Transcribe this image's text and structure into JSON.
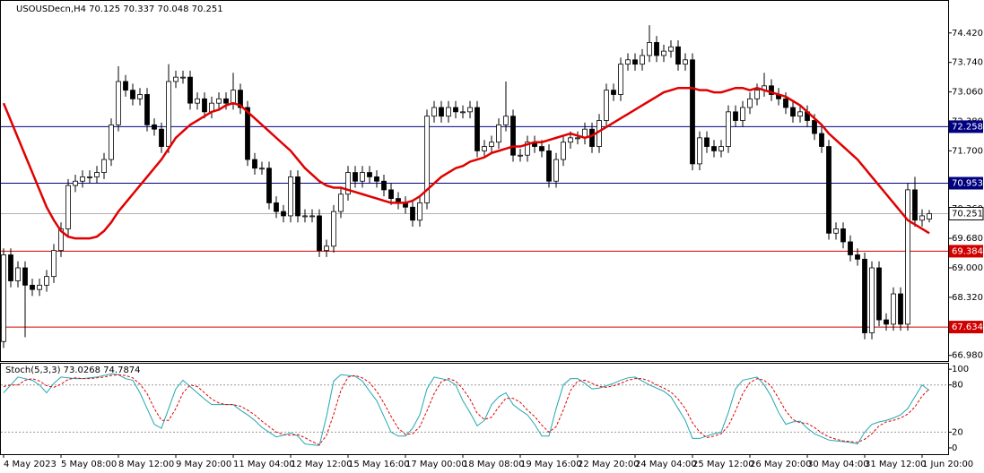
{
  "chart_data": {
    "type": "candlestick",
    "title": "USOUSDecn,H4  70.125 70.337 70.048 70.251",
    "categories": [
      "4 May 2023",
      null,
      null,
      null,
      null,
      null,
      null,
      null,
      "5 May 08:00",
      null,
      null,
      null,
      null,
      null,
      null,
      null,
      "8 May 12:00",
      null,
      null,
      null,
      null,
      null,
      null,
      null,
      "9 May 20:00",
      null,
      null,
      null,
      null,
      null,
      null,
      null,
      "11 May 04:00",
      null,
      null,
      null,
      null,
      null,
      null,
      null,
      "12 May 12:00",
      null,
      null,
      null,
      null,
      null,
      null,
      null,
      "15 May 16:00",
      null,
      null,
      null,
      null,
      null,
      null,
      null,
      "17 May 00:00",
      null,
      null,
      null,
      null,
      null,
      null,
      null,
      "18 May 08:00",
      null,
      null,
      null,
      null,
      null,
      null,
      null,
      "19 May 16:00",
      null,
      null,
      null,
      null,
      null,
      null,
      null,
      "22 May 20:00",
      null,
      null,
      null,
      null,
      null,
      null,
      null,
      "24 May 04:00",
      null,
      null,
      null,
      null,
      null,
      null,
      null,
      "25 May 12:00",
      null,
      null,
      null,
      null,
      null,
      null,
      null,
      "26 May 20:00",
      null,
      null,
      null,
      null,
      null,
      null,
      null,
      "30 May 04:00",
      null,
      null,
      null,
      null,
      null,
      null,
      null,
      "31 May 12:00",
      null,
      null,
      null,
      null,
      null,
      null,
      null,
      "1 Jun 20:00",
      null
    ],
    "open": [
      67.3,
      69.3,
      68.7,
      69.0,
      68.6,
      68.5,
      68.6,
      68.8,
      69.4,
      69.9,
      70.9,
      71.0,
      71.1,
      71.1,
      71.2,
      71.5,
      72.3,
      73.3,
      73.1,
      72.9,
      73.0,
      72.3,
      72.2,
      71.8,
      73.3,
      73.4,
      73.4,
      72.8,
      72.9,
      72.6,
      72.8,
      72.9,
      72.8,
      73.1,
      72.7,
      71.5,
      71.3,
      71.3,
      70.5,
      70.3,
      70.2,
      71.1,
      70.2,
      70.2,
      70.2,
      69.4,
      69.5,
      70.3,
      70.7,
      71.2,
      71.0,
      71.2,
      71.1,
      71.0,
      70.8,
      70.6,
      70.5,
      70.4,
      70.1,
      70.5,
      72.5,
      72.7,
      72.5,
      72.7,
      72.6,
      72.6,
      72.7,
      71.7,
      71.8,
      71.9,
      72.3,
      72.5,
      71.6,
      71.6,
      71.9,
      71.8,
      71.7,
      71.0,
      71.5,
      71.9,
      72.0,
      72.0,
      72.2,
      71.8,
      72.4,
      73.1,
      73.0,
      73.7,
      73.8,
      73.7,
      73.9,
      74.2,
      73.9,
      74.0,
      74.1,
      73.7,
      73.8,
      71.4,
      72.0,
      71.8,
      71.7,
      71.8,
      72.6,
      72.4,
      72.7,
      72.9,
      73.1,
      73.2,
      73.0,
      72.9,
      72.7,
      72.5,
      72.6,
      72.4,
      72.1,
      71.8,
      69.8,
      69.9,
      69.6,
      69.3,
      69.2,
      67.5,
      69.0,
      67.8,
      67.7,
      68.4,
      67.7,
      70.8,
      70.1,
      70.125
    ],
    "high": [
      69.45,
      69.45,
      69.15,
      69.15,
      68.75,
      68.75,
      68.95,
      69.55,
      70.05,
      71.05,
      71.15,
      71.25,
      71.25,
      71.35,
      71.65,
      72.45,
      73.65,
      73.45,
      73.25,
      73.15,
      73.15,
      72.45,
      72.35,
      73.7,
      73.55,
      73.55,
      73.55,
      73.05,
      73.05,
      72.95,
      73.05,
      73.05,
      73.5,
      73.25,
      72.85,
      71.65,
      71.45,
      71.45,
      70.65,
      70.45,
      71.25,
      71.25,
      70.35,
      70.35,
      70.35,
      69.65,
      70.45,
      70.85,
      71.35,
      71.35,
      71.35,
      71.35,
      71.25,
      71.15,
      70.95,
      70.75,
      70.65,
      70.55,
      70.65,
      72.65,
      72.85,
      72.85,
      72.85,
      72.85,
      72.75,
      72.85,
      72.85,
      71.95,
      72.05,
      72.45,
      73.3,
      72.65,
      71.75,
      72.05,
      72.05,
      71.95,
      71.85,
      71.65,
      72.05,
      72.15,
      72.15,
      72.35,
      72.35,
      72.55,
      73.25,
      73.25,
      73.85,
      73.95,
      73.95,
      74.05,
      74.6,
      74.35,
      74.15,
      74.25,
      74.25,
      73.95,
      73.95,
      72.15,
      72.15,
      71.95,
      71.95,
      72.75,
      72.75,
      72.85,
      73.05,
      73.25,
      73.5,
      73.35,
      73.15,
      73.05,
      72.85,
      72.75,
      72.75,
      72.55,
      72.25,
      71.95,
      70.05,
      70.05,
      69.75,
      69.45,
      69.35,
      69.15,
      69.15,
      67.95,
      68.55,
      68.55,
      70.95,
      71.1,
      70.35,
      70.337
    ],
    "low": [
      67.15,
      68.55,
      68.55,
      67.4,
      68.35,
      68.35,
      68.45,
      68.65,
      69.25,
      69.75,
      70.75,
      70.85,
      70.95,
      70.95,
      71.05,
      71.35,
      72.15,
      72.95,
      72.75,
      72.75,
      72.15,
      72.05,
      71.65,
      71.65,
      73.15,
      73.25,
      72.65,
      72.65,
      72.45,
      72.45,
      72.65,
      72.65,
      72.65,
      72.55,
      71.35,
      71.15,
      71.15,
      70.35,
      70.15,
      70.05,
      70.05,
      70.05,
      70.05,
      70.05,
      69.25,
      69.25,
      69.35,
      70.15,
      70.55,
      70.85,
      70.85,
      70.95,
      70.85,
      70.65,
      70.45,
      70.35,
      70.25,
      69.95,
      69.95,
      70.35,
      72.35,
      72.35,
      72.35,
      72.45,
      72.45,
      72.45,
      71.55,
      71.55,
      71.65,
      71.75,
      72.15,
      71.45,
      71.45,
      71.45,
      71.65,
      71.55,
      70.85,
      70.85,
      71.35,
      71.75,
      71.85,
      71.85,
      71.65,
      71.65,
      72.25,
      72.85,
      72.85,
      73.55,
      73.55,
      73.55,
      73.75,
      73.75,
      73.75,
      73.85,
      73.55,
      73.55,
      71.25,
      71.25,
      71.65,
      71.55,
      71.55,
      71.65,
      72.25,
      72.25,
      72.55,
      72.75,
      72.95,
      72.85,
      72.75,
      72.55,
      72.35,
      72.35,
      72.25,
      71.95,
      71.65,
      69.65,
      69.65,
      69.45,
      69.15,
      69.05,
      67.35,
      67.35,
      67.65,
      67.55,
      67.55,
      67.55,
      67.55,
      69.95,
      69.95,
      70.048
    ],
    "close": [
      69.3,
      68.7,
      69.0,
      68.6,
      68.5,
      68.6,
      68.8,
      69.4,
      69.9,
      70.9,
      71.0,
      71.1,
      71.1,
      71.2,
      71.5,
      72.3,
      73.3,
      73.1,
      72.9,
      73.0,
      72.3,
      72.2,
      71.8,
      73.3,
      73.4,
      73.4,
      72.8,
      72.9,
      72.6,
      72.8,
      72.9,
      72.8,
      73.1,
      72.7,
      71.5,
      71.3,
      71.3,
      70.5,
      70.3,
      70.2,
      71.1,
      70.2,
      70.2,
      70.2,
      69.4,
      69.5,
      70.3,
      70.7,
      71.2,
      71.0,
      71.2,
      71.1,
      71.0,
      70.8,
      70.6,
      70.5,
      70.4,
      70.1,
      70.5,
      72.5,
      72.7,
      72.5,
      72.7,
      72.6,
      72.6,
      72.7,
      71.7,
      71.8,
      71.9,
      72.3,
      72.5,
      71.6,
      71.6,
      71.9,
      71.8,
      71.7,
      71.0,
      71.5,
      71.9,
      72.0,
      72.0,
      72.2,
      71.8,
      72.4,
      73.1,
      73.0,
      73.7,
      73.8,
      73.7,
      73.9,
      74.2,
      73.9,
      74.0,
      74.1,
      73.7,
      73.8,
      71.4,
      72.0,
      71.8,
      71.7,
      71.8,
      72.6,
      72.4,
      72.7,
      72.9,
      73.1,
      73.2,
      73.0,
      72.9,
      72.7,
      72.5,
      72.6,
      72.4,
      72.1,
      71.8,
      69.8,
      69.9,
      69.6,
      69.3,
      69.2,
      67.5,
      69.0,
      67.8,
      67.7,
      68.4,
      67.7,
      70.8,
      70.1,
      70.2,
      70.251
    ],
    "ma": {
      "color": "#e00000",
      "values": [
        72.8,
        72.4,
        72.0,
        71.6,
        71.2,
        70.8,
        70.4,
        70.1,
        69.85,
        69.72,
        69.68,
        69.68,
        69.68,
        69.72,
        69.85,
        70.05,
        70.3,
        70.5,
        70.7,
        70.9,
        71.1,
        71.3,
        71.5,
        71.75,
        72.0,
        72.15,
        72.3,
        72.4,
        72.5,
        72.6,
        72.65,
        72.75,
        72.8,
        72.75,
        72.6,
        72.45,
        72.3,
        72.15,
        72.0,
        71.85,
        71.7,
        71.5,
        71.3,
        71.15,
        71.0,
        70.9,
        70.85,
        70.85,
        70.8,
        70.75,
        70.7,
        70.65,
        70.6,
        70.55,
        70.5,
        70.5,
        70.5,
        70.55,
        70.65,
        70.8,
        70.95,
        71.1,
        71.2,
        71.3,
        71.35,
        71.45,
        71.5,
        71.55,
        71.65,
        71.7,
        71.75,
        71.8,
        71.8,
        71.85,
        71.9,
        71.9,
        71.95,
        72.0,
        72.05,
        72.1,
        72.05,
        72.0,
        72.05,
        72.15,
        72.25,
        72.35,
        72.45,
        72.55,
        72.65,
        72.75,
        72.85,
        72.95,
        73.05,
        73.1,
        73.15,
        73.15,
        73.15,
        73.1,
        73.1,
        73.05,
        73.05,
        73.1,
        73.15,
        73.15,
        73.1,
        73.15,
        73.1,
        73.05,
        73.0,
        72.95,
        72.85,
        72.75,
        72.6,
        72.45,
        72.3,
        72.1,
        71.95,
        71.8,
        71.65,
        71.5,
        71.3,
        71.1,
        70.9,
        70.7,
        70.5,
        70.3,
        70.1,
        70.0,
        69.9,
        69.8
      ]
    },
    "ylim": [
      66.85,
      75.16
    ],
    "yticks": [
      {
        "value": 74.42,
        "label": "74.420"
      },
      {
        "value": 73.74,
        "label": "73.740"
      },
      {
        "value": 73.06,
        "label": "73.060"
      },
      {
        "value": 72.38,
        "label": "72.380"
      },
      {
        "value": 71.7,
        "label": "71.700"
      },
      {
        "value": 70.36,
        "label": "70.360"
      },
      {
        "value": 69.68,
        "label": "69.680"
      },
      {
        "value": 69,
        "label": "69.000"
      },
      {
        "value": 68.32,
        "label": "68.320"
      },
      {
        "value": 66.98,
        "label": "66.980"
      }
    ],
    "levels": [
      {
        "value": 72.258,
        "color": "#000080"
      },
      {
        "value": 70.953,
        "color": "#000080"
      },
      {
        "value": 69.384,
        "color": "#d00000"
      },
      {
        "value": 67.634,
        "color": "#d00000"
      }
    ],
    "last_price": 70.251,
    "stochastic": {
      "title": "Stoch(5,3,3) 73.0268 74.7874",
      "ylim": [
        -8,
        107
      ],
      "yticks": [
        100,
        80,
        20,
        0
      ],
      "levels": [
        80,
        20
      ],
      "main": {
        "color": "#20a8b0",
        "values": [
          70,
          80,
          90,
          88,
          86,
          80,
          70,
          82,
          90,
          89,
          88,
          88,
          89,
          90,
          92,
          94,
          93,
          88,
          86,
          70,
          50,
          30,
          25,
          50,
          75,
          86,
          78,
          70,
          62,
          55,
          55,
          55,
          55,
          48,
          42,
          35,
          26,
          20,
          14,
          16,
          19,
          15,
          5,
          4,
          3,
          40,
          85,
          93,
          92,
          91,
          85,
          72,
          60,
          40,
          20,
          15,
          15,
          25,
          42,
          75,
          90,
          88,
          86,
          80,
          60,
          45,
          28,
          35,
          55,
          65,
          70,
          55,
          48,
          42,
          30,
          15,
          15,
          50,
          80,
          88,
          88,
          82,
          75,
          76,
          79,
          82,
          86,
          89,
          90,
          85,
          80,
          76,
          72,
          65,
          50,
          35,
          12,
          12,
          15,
          18,
          20,
          45,
          75,
          86,
          88,
          90,
          80,
          65,
          45,
          30,
          33,
          34,
          25,
          18,
          14,
          10,
          9,
          8,
          7,
          5,
          20,
          30,
          33,
          35,
          38,
          42,
          50,
          65,
          80,
          73
        ]
      },
      "signal": {
        "color": "#e00000",
        "values": [
          78,
          80,
          80,
          86,
          88,
          85,
          79,
          77,
          81,
          87,
          89,
          88,
          88,
          89,
          90,
          92,
          93,
          92,
          89,
          81,
          69,
          50,
          35,
          35,
          50,
          70,
          80,
          78,
          70,
          62,
          57,
          55,
          55,
          53,
          48,
          42,
          34,
          27,
          20,
          17,
          16,
          17,
          13,
          8,
          4,
          16,
          43,
          73,
          90,
          92,
          89,
          83,
          72,
          57,
          40,
          25,
          17,
          18,
          27,
          47,
          69,
          84,
          88,
          85,
          75,
          62,
          44,
          36,
          39,
          52,
          63,
          63,
          58,
          48,
          40,
          29,
          20,
          27,
          48,
          73,
          85,
          86,
          82,
          78,
          77,
          79,
          82,
          86,
          88,
          88,
          85,
          80,
          76,
          71,
          62,
          50,
          32,
          20,
          13,
          15,
          18,
          28,
          47,
          69,
          83,
          88,
          86,
          78,
          63,
          47,
          36,
          32,
          31,
          26,
          19,
          14,
          11,
          9,
          8,
          7,
          11,
          18,
          28,
          33,
          35,
          38,
          43,
          52,
          66,
          75
        ]
      }
    }
  }
}
